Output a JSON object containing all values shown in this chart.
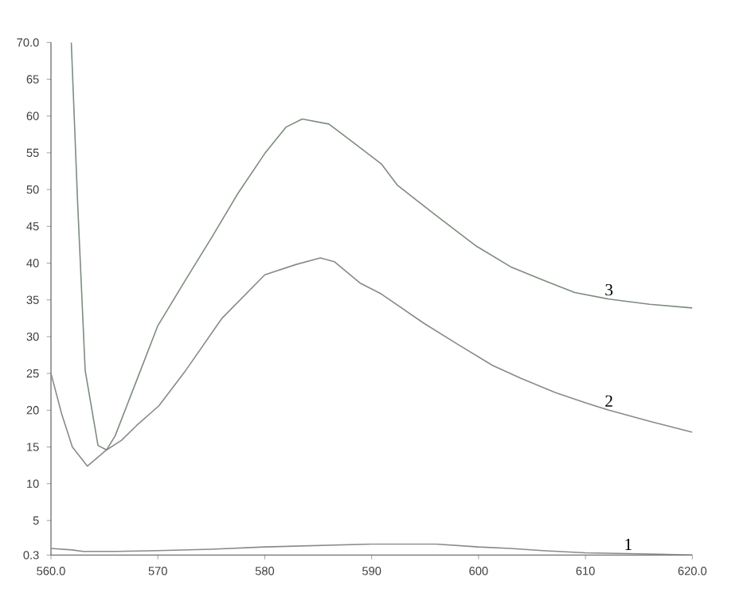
{
  "chart_data": {
    "type": "line",
    "xlim": [
      560,
      620
    ],
    "ylim": [
      0.3,
      70
    ],
    "xticks": [
      {
        "value": 560,
        "label": "560.0"
      },
      570,
      580,
      590,
      600,
      610,
      {
        "value": 620,
        "label": "620.0"
      }
    ],
    "yticks": [
      {
        "value": 0.3,
        "label": "0.3"
      },
      5,
      10,
      15,
      20,
      25,
      30,
      35,
      40,
      45,
      50,
      55,
      60,
      65,
      {
        "value": 70,
        "label": "70.0"
      }
    ],
    "grid": false,
    "marker": "none",
    "line_style": "solid",
    "series": [
      {
        "name": "1",
        "color": "#8a8a8a",
        "x": [
          560,
          562,
          563,
          566,
          570,
          575,
          580,
          585,
          590,
          593,
          596,
          600,
          603,
          606,
          610,
          614,
          617,
          620
        ],
        "values": [
          1.2,
          1.0,
          0.8,
          0.8,
          0.9,
          1.1,
          1.4,
          1.6,
          1.8,
          1.8,
          1.8,
          1.4,
          1.2,
          0.9,
          0.6,
          0.5,
          0.4,
          0.3
        ]
      },
      {
        "name": "2",
        "color": "#8a8a8a",
        "x": [
          560,
          561,
          562,
          563.4,
          565.2,
          566.6,
          568,
          570.1,
          572.6,
          576,
          580,
          582.9,
          585.2,
          586.5,
          588.9,
          590.9,
          594.9,
          598,
          601.3,
          604,
          607.2,
          610,
          612.2,
          616,
          620
        ],
        "values": [
          25,
          19.5,
          15,
          12.4,
          14.6,
          15.9,
          17.9,
          20.6,
          25.4,
          32.5,
          38.4,
          39.8,
          40.7,
          40.2,
          37.3,
          35.8,
          31.8,
          29,
          26.1,
          24.3,
          22.4,
          21,
          20,
          18.5,
          17
        ]
      },
      {
        "name": "3",
        "color": "#7d8c7d",
        "x": [
          561.9,
          562.5,
          563.2,
          564.4,
          565.2,
          566,
          568,
          570,
          572.5,
          575,
          577.5,
          580,
          582,
          583.5,
          586,
          588,
          590.9,
          592.4,
          596,
          599.8,
          603,
          606.2,
          609,
          612.2,
          616,
          620
        ],
        "values": [
          70,
          48,
          25.4,
          15.2,
          14.6,
          16.5,
          24,
          31.5,
          37.5,
          43.4,
          49.5,
          54.9,
          58.5,
          59.6,
          58.9,
          56.7,
          53.5,
          50.6,
          46.5,
          42.3,
          39.5,
          37.6,
          36,
          35.1,
          34.4,
          33.9
        ]
      }
    ]
  }
}
